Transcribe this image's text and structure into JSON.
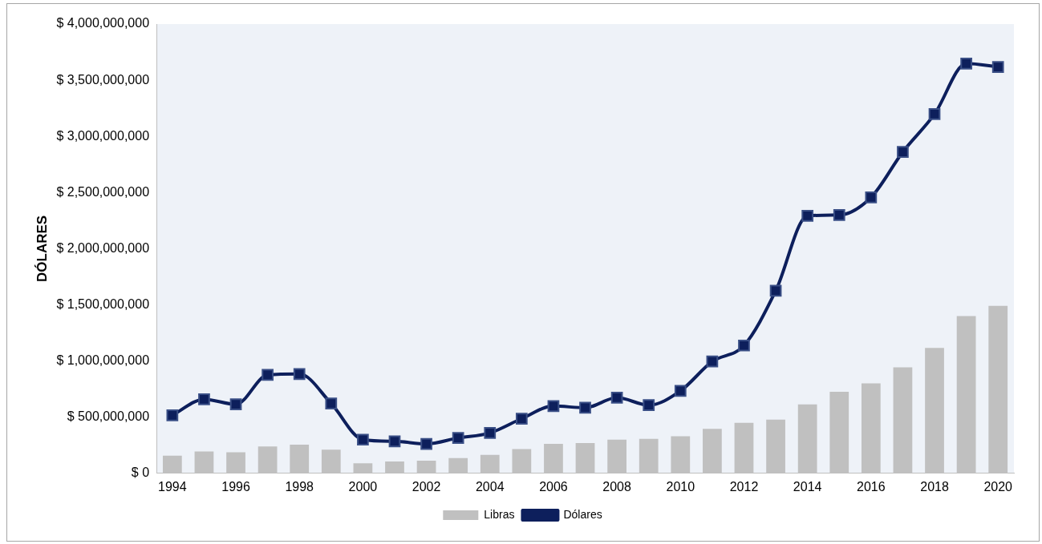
{
  "chart_data": {
    "type": "bar",
    "ylabel": "DÓLARES",
    "categories": [
      "1994",
      null,
      "1996",
      null,
      "1998",
      null,
      "2000",
      null,
      "2002",
      null,
      "2004",
      null,
      "2006",
      null,
      "2008",
      null,
      "2010",
      null,
      "2012",
      null,
      "2014",
      null,
      "2016",
      null,
      "2018",
      null,
      "2020"
    ],
    "series": [
      {
        "name": "Libras",
        "color": "#c0c0c0",
        "values": [
          157000000,
          195000000,
          187000000,
          240000000,
          255000000,
          210000000,
          90000000,
          105000000,
          112000000,
          135000000,
          165000000,
          217000000,
          262000000,
          270000000,
          300000000,
          307000000,
          330000000,
          397000000,
          449000000,
          479000000,
          614000000,
          727000000,
          801000000,
          944000000,
          1116000000,
          1401000000,
          1491000000
        ]
      },
      {
        "name": "Dólares",
        "type": "line",
        "color": "#0d1f5c",
        "marker": "square",
        "values": [
          517000000,
          659000000,
          614000000,
          876000000,
          884000000,
          622000000,
          300000000,
          285000000,
          262000000,
          315000000,
          360000000,
          487000000,
          599000000,
          584000000,
          674000000,
          607000000,
          734000000,
          996000000,
          1138000000,
          1625000000,
          2292000000,
          2300000000,
          2457000000,
          2861000000,
          3198000000,
          3648000000,
          3618000000
        ]
      }
    ],
    "ylim": [
      0,
      4000000000
    ],
    "yticks": [
      {
        "value": 0,
        "label": "$ 0"
      },
      {
        "value": 500000000,
        "label": "$ 500,000,000"
      },
      {
        "value": 1000000000,
        "label": "$ 1,000,000,000"
      },
      {
        "value": 1500000000,
        "label": "$ 1,500,000,000"
      },
      {
        "value": 2000000000,
        "label": "$ 2,000,000,000"
      },
      {
        "value": 2500000000,
        "label": "$ 2,500,000,000"
      },
      {
        "value": 3000000000,
        "label": "$ 3,000,000,000"
      },
      {
        "value": 3500000000,
        "label": "$ 3,500,000,000"
      },
      {
        "value": 4000000000,
        "label": "$ 4,000,000,000"
      }
    ],
    "grid": false,
    "legend": "bottom"
  }
}
